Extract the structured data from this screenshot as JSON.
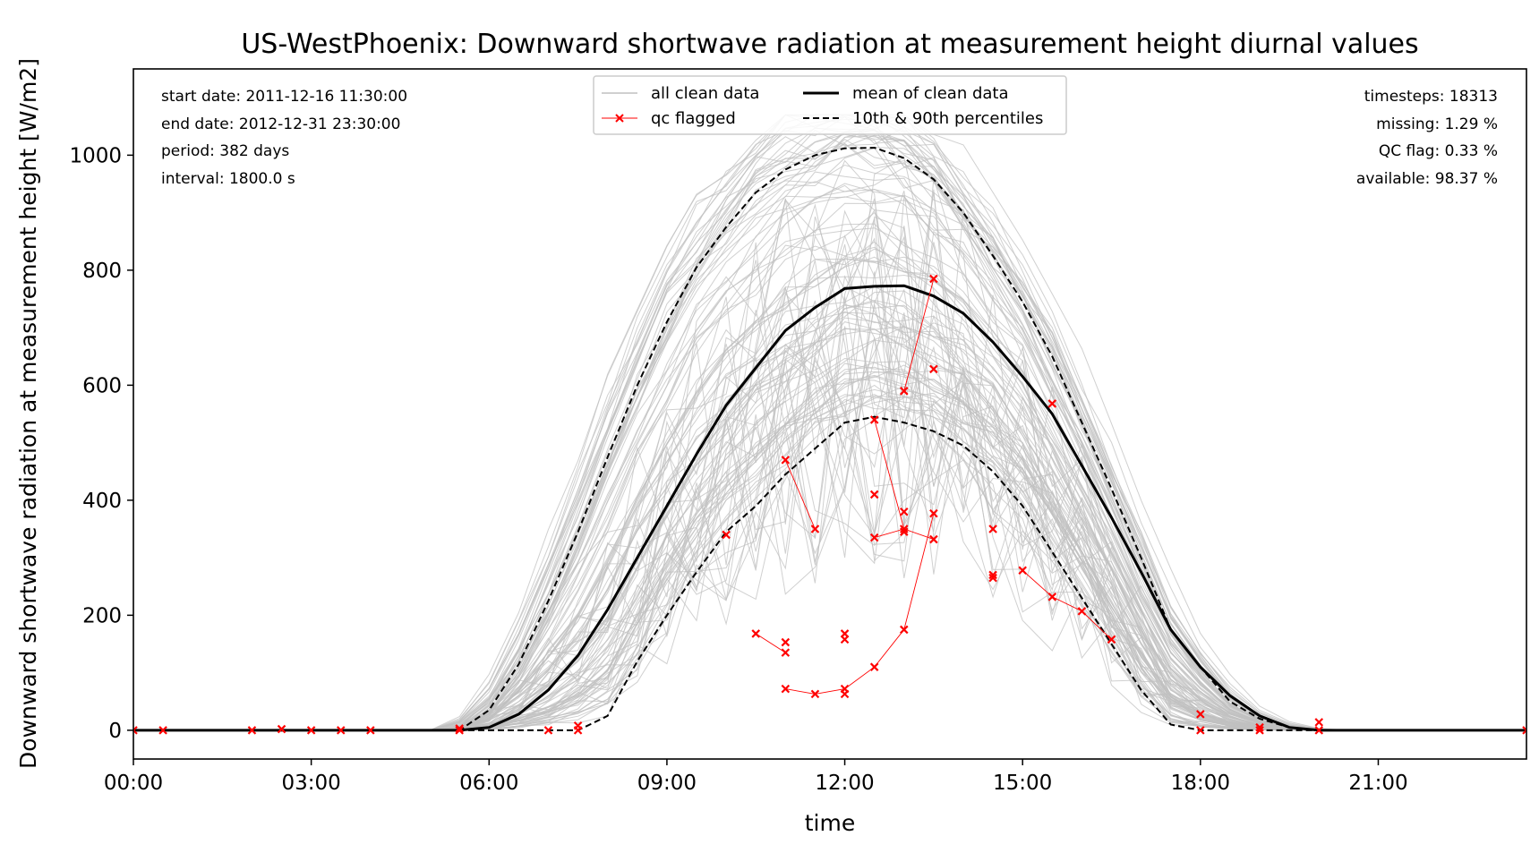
{
  "chart_data": {
    "type": "line",
    "title": "US-WestPhoenix: Downward shortwave radiation at measurement height diurnal values",
    "xlabel": "time",
    "ylabel": "Downward shortwave radiation at measurement height [W/m2]",
    "xlim": [
      0,
      23.5
    ],
    "ylim": [
      -50,
      1150
    ],
    "x_ticks": [
      0,
      3,
      6,
      9,
      12,
      15,
      18,
      21
    ],
    "x_tick_labels": [
      "00:00",
      "03:00",
      "06:00",
      "09:00",
      "12:00",
      "15:00",
      "18:00",
      "21:00"
    ],
    "y_ticks": [
      0,
      200,
      400,
      600,
      800,
      1000
    ],
    "y_tick_labels": [
      "0",
      "200",
      "400",
      "600",
      "800",
      "1000"
    ],
    "grid": false,
    "legend_position": "top-center",
    "legend": [
      "all clean data",
      "qc flagged",
      "mean of clean data",
      "10th & 90th percentiles"
    ],
    "info_left": [
      "start date: 2011-12-16 11:30:00",
      "end date: 2012-12-31 23:30:00",
      "period: 382 days",
      "interval: 1800.0 s"
    ],
    "info_right": [
      "timesteps: 18313",
      "missing: 1.29 %",
      "QC flag: 0.33 %",
      "available: 98.37 %"
    ],
    "colors": {
      "clean": "#c0c0c0",
      "mean": "#000000",
      "percentile": "#000000",
      "qc": "#ff0000"
    },
    "series": [
      {
        "name": "mean of clean data",
        "x": [
          5.5,
          6.0,
          6.5,
          7.0,
          7.5,
          8.0,
          8.5,
          9.0,
          9.5,
          10.0,
          10.5,
          11.0,
          11.5,
          12.0,
          12.5,
          13.0,
          13.5,
          14.0,
          14.5,
          15.0,
          15.5,
          16.0,
          16.5,
          17.0,
          17.5,
          18.0,
          18.5,
          19.0,
          19.5,
          20.0
        ],
        "y": [
          0,
          5,
          28,
          70,
          130,
          210,
          300,
          390,
          480,
          565,
          630,
          695,
          735,
          768,
          772,
          773,
          755,
          725,
          675,
          615,
          550,
          460,
          370,
          275,
          175,
          110,
          60,
          25,
          5,
          0
        ]
      },
      {
        "name": "10th & 90th percentiles (90th)",
        "x": [
          5.5,
          6.0,
          6.5,
          7.0,
          7.5,
          8.0,
          8.5,
          9.0,
          9.5,
          10.0,
          10.5,
          11.0,
          11.5,
          12.0,
          12.5,
          13.0,
          13.5,
          14.0,
          14.5,
          15.0,
          15.5,
          16.0,
          16.5,
          17.0,
          17.5,
          18.0,
          18.5,
          19.0,
          19.5,
          20.0
        ],
        "y": [
          0,
          35,
          115,
          225,
          345,
          475,
          600,
          710,
          805,
          875,
          935,
          975,
          1000,
          1012,
          1013,
          995,
          958,
          900,
          825,
          745,
          650,
          535,
          420,
          300,
          175,
          110,
          50,
          20,
          5,
          0
        ]
      },
      {
        "name": "10th & 90th percentiles (10th)",
        "x": [
          0,
          6.0,
          7.0,
          7.5,
          8.0,
          8.5,
          9.0,
          9.5,
          10.0,
          10.5,
          11.0,
          11.5,
          12.0,
          12.5,
          13.0,
          13.5,
          14.0,
          14.5,
          15.0,
          15.5,
          16.0,
          16.5,
          17.0,
          17.5,
          18.0,
          23.5
        ],
        "y": [
          0,
          0,
          0,
          0,
          25,
          120,
          200,
          275,
          345,
          390,
          445,
          490,
          535,
          545,
          535,
          520,
          495,
          450,
          390,
          310,
          230,
          150,
          70,
          10,
          0,
          0
        ]
      },
      {
        "name": "qc flagged",
        "points": [
          [
            0,
            0
          ],
          [
            0.5,
            0
          ],
          [
            2.0,
            0
          ],
          [
            2.5,
            2
          ],
          [
            3.0,
            0
          ],
          [
            3.5,
            0
          ],
          [
            4.0,
            0
          ],
          [
            5.5,
            3
          ],
          [
            5.5,
            0
          ],
          [
            7.0,
            0
          ],
          [
            7.5,
            8
          ],
          [
            7.5,
            0
          ],
          [
            10.0,
            340
          ],
          [
            10.5,
            168
          ],
          [
            11.0,
            470
          ],
          [
            11.0,
            153
          ],
          [
            11.0,
            135
          ],
          [
            11.0,
            72
          ],
          [
            11.5,
            350
          ],
          [
            11.5,
            63
          ],
          [
            12.0,
            168
          ],
          [
            12.0,
            158
          ],
          [
            12.0,
            72
          ],
          [
            12.0,
            63
          ],
          [
            12.5,
            540
          ],
          [
            12.5,
            410
          ],
          [
            12.5,
            335
          ],
          [
            12.5,
            110
          ],
          [
            13.0,
            590
          ],
          [
            13.0,
            380
          ],
          [
            13.0,
            350
          ],
          [
            13.0,
            345
          ],
          [
            13.0,
            175
          ],
          [
            13.5,
            785
          ],
          [
            13.5,
            628
          ],
          [
            13.5,
            377
          ],
          [
            13.5,
            332
          ],
          [
            14.5,
            350
          ],
          [
            14.5,
            270
          ],
          [
            14.5,
            265
          ],
          [
            15.0,
            278
          ],
          [
            15.5,
            568
          ],
          [
            15.5,
            232
          ],
          [
            16.0,
            207
          ],
          [
            16.5,
            158
          ],
          [
            18.0,
            28
          ],
          [
            18.0,
            0
          ],
          [
            19.0,
            5
          ],
          [
            19.0,
            0
          ],
          [
            20.0,
            14
          ],
          [
            20.0,
            0
          ],
          [
            23.5,
            0
          ]
        ],
        "paths": [
          [
            [
              11.0,
              470
            ],
            [
              11.5,
              350
            ]
          ],
          [
            [
              11.0,
              72
            ],
            [
              11.5,
              63
            ],
            [
              12.0,
              72
            ],
            [
              12.5,
              110
            ],
            [
              13.0,
              175
            ],
            [
              13.5,
              377
            ]
          ],
          [
            [
              12.5,
              540
            ],
            [
              13.0,
              350
            ],
            [
              13.5,
              332
            ]
          ],
          [
            [
              13.5,
              785
            ],
            [
              13.0,
              590
            ]
          ],
          [
            [
              15.0,
              278
            ],
            [
              15.5,
              232
            ],
            [
              16.0,
              207
            ],
            [
              16.5,
              158
            ]
          ],
          [
            [
              10.5,
              168
            ],
            [
              11.0,
              135
            ]
          ],
          [
            [
              12.5,
              335
            ],
            [
              13.0,
              350
            ]
          ]
        ]
      }
    ]
  }
}
